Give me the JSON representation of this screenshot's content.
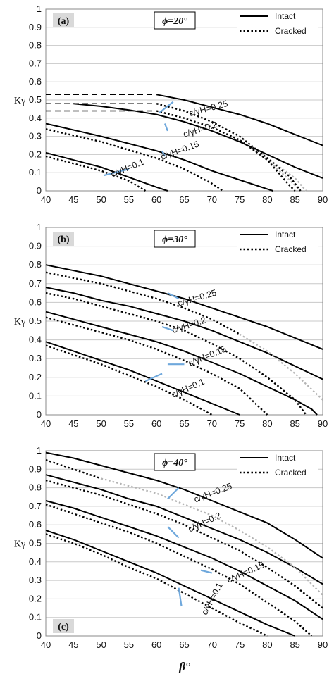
{
  "figure": {
    "xlabel": "β°"
  },
  "chart_data": [
    {
      "type": "line",
      "panel_label": "(a)",
      "phi_label": "ϕ=20°",
      "ylabel": "Kγ",
      "xlim": [
        40,
        90
      ],
      "ylim": [
        0,
        1
      ],
      "xticks": [
        40,
        45,
        50,
        55,
        60,
        65,
        70,
        75,
        80,
        85,
        90
      ],
      "yticks": [
        0,
        0.1,
        0.2,
        0.3,
        0.4,
        0.5,
        0.6,
        0.7,
        0.8,
        0.9,
        1
      ],
      "legend": {
        "position": "top-right",
        "intact": "Intact",
        "cracked": "Cracked"
      },
      "grid": "horizontal",
      "curves": [
        {
          "label": "c/γH=0.1",
          "intact": [
            [
              40,
              0.21
            ],
            [
              50,
              0.13
            ],
            [
              55,
              0.075
            ],
            [
              60,
              0.02
            ],
            [
              62,
              0
            ]
          ],
          "cracked": [
            [
              40,
              0.19
            ],
            [
              50,
              0.11
            ],
            [
              55,
              0.055
            ],
            [
              58,
              0
            ]
          ]
        },
        {
          "label": "c/γH=0.15",
          "intact": [
            [
              40,
              0.37
            ],
            [
              50,
              0.3
            ],
            [
              60,
              0.22
            ],
            [
              65,
              0.17
            ],
            [
              70,
              0.11
            ],
            [
              75,
              0.06
            ],
            [
              80,
              0.01
            ],
            [
              81,
              0
            ]
          ],
          "cracked": [
            [
              40,
              0.34
            ],
            [
              50,
              0.27
            ],
            [
              60,
              0.18
            ],
            [
              65,
              0.12
            ],
            [
              70,
              0.04
            ],
            [
              72,
              0
            ]
          ]
        },
        {
          "label": "c/γH=0.2",
          "cracked_flat": [
            [
              40,
              0.44
            ],
            [
              60,
              0.44
            ]
          ],
          "intact": [
            [
              45,
              0.48
            ],
            [
              50,
              0.465
            ],
            [
              55,
              0.445
            ],
            [
              60,
              0.42
            ],
            [
              65,
              0.38
            ],
            [
              70,
              0.33
            ],
            [
              75,
              0.27
            ],
            [
              80,
              0.2
            ],
            [
              85,
              0.13
            ],
            [
              90,
              0.07
            ]
          ],
          "cracked": [
            [
              60,
              0.44
            ],
            [
              65,
              0.4
            ],
            [
              70,
              0.35
            ],
            [
              75,
              0.28
            ],
            [
              80,
              0.17
            ],
            [
              82,
              0.1
            ],
            [
              84,
              0.03
            ],
            [
              85,
              0
            ]
          ],
          "cracked_gray": [
            [
              75,
              0.28
            ],
            [
              80,
              0.17
            ],
            [
              84,
              0.06
            ],
            [
              86,
              0
            ]
          ]
        },
        {
          "label": "c/γH=0.25",
          "intact_flat": [
            [
              40,
              0.53
            ],
            [
              60,
              0.53
            ]
          ],
          "cracked_flat": [
            [
              40,
              0.48
            ],
            [
              60,
              0.48
            ]
          ],
          "intact": [
            [
              60,
              0.53
            ],
            [
              65,
              0.5
            ],
            [
              70,
              0.46
            ],
            [
              75,
              0.42
            ],
            [
              80,
              0.37
            ],
            [
              85,
              0.31
            ],
            [
              90,
              0.25
            ]
          ],
          "cracked": [
            [
              60,
              0.48
            ],
            [
              65,
              0.44
            ],
            [
              70,
              0.38
            ],
            [
              75,
              0.3
            ],
            [
              80,
              0.18
            ],
            [
              84,
              0.08
            ],
            [
              86,
              0
            ]
          ],
          "cracked_gray": [
            [
              75,
              0.3
            ],
            [
              80,
              0.18
            ],
            [
              85,
              0.07
            ],
            [
              87,
              0
            ]
          ]
        }
      ]
    },
    {
      "type": "line",
      "panel_label": "(b)",
      "phi_label": "ϕ=30°",
      "ylabel": "Kγ",
      "xlim": [
        40,
        90
      ],
      "ylim": [
        0,
        1
      ],
      "xticks": [
        40,
        45,
        50,
        55,
        60,
        65,
        70,
        75,
        80,
        85,
        90
      ],
      "yticks": [
        0,
        0.1,
        0.2,
        0.3,
        0.4,
        0.5,
        0.6,
        0.7,
        0.8,
        0.9,
        1
      ],
      "legend": {
        "position": "top-right",
        "intact": "Intact",
        "cracked": "Cracked"
      },
      "grid": "horizontal",
      "curves": [
        {
          "label": "c/γH=0.1",
          "intact": [
            [
              40,
              0.39
            ],
            [
              45,
              0.34
            ],
            [
              50,
              0.29
            ],
            [
              55,
              0.24
            ],
            [
              60,
              0.18
            ],
            [
              65,
              0.12
            ],
            [
              70,
              0.06
            ],
            [
              75,
              0
            ]
          ],
          "cracked": [
            [
              40,
              0.37
            ],
            [
              45,
              0.32
            ],
            [
              50,
              0.27
            ],
            [
              55,
              0.21
            ],
            [
              60,
              0.15
            ],
            [
              65,
              0.08
            ],
            [
              70,
              0
            ]
          ]
        },
        {
          "label": "c/γH=0.15",
          "intact": [
            [
              40,
              0.55
            ],
            [
              45,
              0.51
            ],
            [
              50,
              0.47
            ],
            [
              55,
              0.43
            ],
            [
              60,
              0.39
            ],
            [
              65,
              0.34
            ],
            [
              70,
              0.28
            ],
            [
              75,
              0.22
            ],
            [
              80,
              0.15
            ],
            [
              85,
              0.08
            ],
            [
              88,
              0.03
            ],
            [
              89,
              0
            ]
          ],
          "cracked": [
            [
              40,
              0.52
            ],
            [
              45,
              0.48
            ],
            [
              50,
              0.44
            ],
            [
              55,
              0.4
            ],
            [
              60,
              0.35
            ],
            [
              65,
              0.29
            ],
            [
              70,
              0.22
            ],
            [
              75,
              0.14
            ],
            [
              80,
              0
            ]
          ]
        },
        {
          "label": "c/γH=0.2",
          "intact": [
            [
              40,
              0.68
            ],
            [
              45,
              0.65
            ],
            [
              50,
              0.61
            ],
            [
              55,
              0.58
            ],
            [
              60,
              0.54
            ],
            [
              65,
              0.5
            ],
            [
              70,
              0.45
            ],
            [
              75,
              0.39
            ],
            [
              80,
              0.33
            ],
            [
              85,
              0.26
            ],
            [
              90,
              0.19
            ]
          ],
          "cracked": [
            [
              40,
              0.65
            ],
            [
              45,
              0.62
            ],
            [
              50,
              0.58
            ],
            [
              55,
              0.54
            ],
            [
              60,
              0.5
            ],
            [
              65,
              0.45
            ],
            [
              70,
              0.38
            ],
            [
              75,
              0.3
            ],
            [
              80,
              0.2
            ],
            [
              85,
              0.08
            ],
            [
              87,
              0
            ]
          ]
        },
        {
          "label": "c/γH=0.25",
          "intact": [
            [
              40,
              0.8
            ],
            [
              45,
              0.77
            ],
            [
              50,
              0.74
            ],
            [
              55,
              0.7
            ],
            [
              60,
              0.66
            ],
            [
              65,
              0.62
            ],
            [
              70,
              0.57
            ],
            [
              75,
              0.52
            ],
            [
              80,
              0.47
            ],
            [
              85,
              0.41
            ],
            [
              90,
              0.35
            ]
          ],
          "cracked": [
            [
              40,
              0.76
            ],
            [
              45,
              0.73
            ],
            [
              50,
              0.7
            ],
            [
              55,
              0.66
            ],
            [
              60,
              0.62
            ],
            [
              65,
              0.57
            ],
            [
              70,
              0.51
            ],
            [
              75,
              0.43
            ]
          ],
          "cracked_gray": [
            [
              75,
              0.43
            ],
            [
              80,
              0.34
            ],
            [
              85,
              0.22
            ],
            [
              90,
              0.08
            ]
          ]
        }
      ]
    },
    {
      "type": "line",
      "panel_label": "(c)",
      "phi_label": "ϕ=40°",
      "ylabel": "Kγ",
      "xlim": [
        40,
        90
      ],
      "ylim": [
        0,
        1
      ],
      "xticks": [
        40,
        45,
        50,
        55,
        60,
        65,
        70,
        75,
        80,
        85,
        90
      ],
      "yticks": [
        0,
        0.1,
        0.2,
        0.3,
        0.4,
        0.5,
        0.6,
        0.7,
        0.8,
        0.9,
        1
      ],
      "legend": {
        "position": "top-right",
        "intact": "Intact",
        "cracked": "Cracked"
      },
      "grid": "horizontal",
      "curves": [
        {
          "label": "c/γH=0.1",
          "intact": [
            [
              40,
              0.57
            ],
            [
              45,
              0.52
            ],
            [
              50,
              0.46
            ],
            [
              55,
              0.4
            ],
            [
              60,
              0.34
            ],
            [
              65,
              0.27
            ],
            [
              70,
              0.2
            ],
            [
              75,
              0.13
            ],
            [
              80,
              0.06
            ],
            [
              85,
              0
            ]
          ],
          "cracked": [
            [
              40,
              0.55
            ],
            [
              45,
              0.5
            ],
            [
              50,
              0.44
            ],
            [
              55,
              0.37
            ],
            [
              60,
              0.31
            ],
            [
              65,
              0.23
            ],
            [
              70,
              0.15
            ],
            [
              75,
              0.07
            ],
            [
              80,
              0
            ]
          ]
        },
        {
          "label": "c/γH=0.15",
          "intact": [
            [
              40,
              0.73
            ],
            [
              45,
              0.69
            ],
            [
              50,
              0.64
            ],
            [
              55,
              0.59
            ],
            [
              60,
              0.54
            ],
            [
              65,
              0.48
            ],
            [
              70,
              0.42
            ],
            [
              75,
              0.35
            ],
            [
              80,
              0.27
            ],
            [
              85,
              0.19
            ],
            [
              88,
              0.13
            ],
            [
              90,
              0.09
            ]
          ],
          "cracked": [
            [
              40,
              0.71
            ],
            [
              45,
              0.66
            ],
            [
              50,
              0.61
            ],
            [
              55,
              0.56
            ],
            [
              60,
              0.5
            ],
            [
              65,
              0.43
            ],
            [
              70,
              0.36
            ],
            [
              75,
              0.28
            ],
            [
              80,
              0.18
            ],
            [
              85,
              0.08
            ],
            [
              88,
              0
            ]
          ]
        },
        {
          "label": "c/γH=0.2",
          "intact": [
            [
              40,
              0.87
            ],
            [
              45,
              0.83
            ],
            [
              50,
              0.79
            ],
            [
              55,
              0.74
            ],
            [
              60,
              0.7
            ],
            [
              65,
              0.64
            ],
            [
              70,
              0.58
            ],
            [
              75,
              0.52
            ],
            [
              80,
              0.45
            ],
            [
              85,
              0.37
            ],
            [
              90,
              0.28
            ]
          ],
          "cracked": [
            [
              40,
              0.84
            ],
            [
              45,
              0.8
            ],
            [
              50,
              0.76
            ],
            [
              55,
              0.71
            ],
            [
              60,
              0.66
            ],
            [
              65,
              0.6
            ],
            [
              70,
              0.53
            ],
            [
              75,
              0.46
            ],
            [
              80,
              0.37
            ],
            [
              85,
              0.27
            ],
            [
              90,
              0.15
            ]
          ]
        },
        {
          "label": "c/γH=0.25",
          "intact": [
            [
              40,
              0.99
            ],
            [
              45,
              0.96
            ],
            [
              50,
              0.92
            ],
            [
              55,
              0.88
            ],
            [
              60,
              0.84
            ],
            [
              65,
              0.79
            ],
            [
              70,
              0.73
            ],
            [
              75,
              0.67
            ],
            [
              80,
              0.61
            ],
            [
              85,
              0.52
            ],
            [
              90,
              0.42
            ]
          ],
          "cracked": [
            [
              40,
              0.95
            ],
            [
              45,
              0.9
            ],
            [
              50,
              0.85
            ]
          ],
          "cracked_gray": [
            [
              50,
              0.85
            ],
            [
              55,
              0.81
            ],
            [
              60,
              0.77
            ],
            [
              65,
              0.71
            ],
            [
              70,
              0.65
            ],
            [
              75,
              0.57
            ],
            [
              80,
              0.48
            ],
            [
              85,
              0.37
            ],
            [
              90,
              0.22
            ]
          ]
        }
      ]
    }
  ]
}
